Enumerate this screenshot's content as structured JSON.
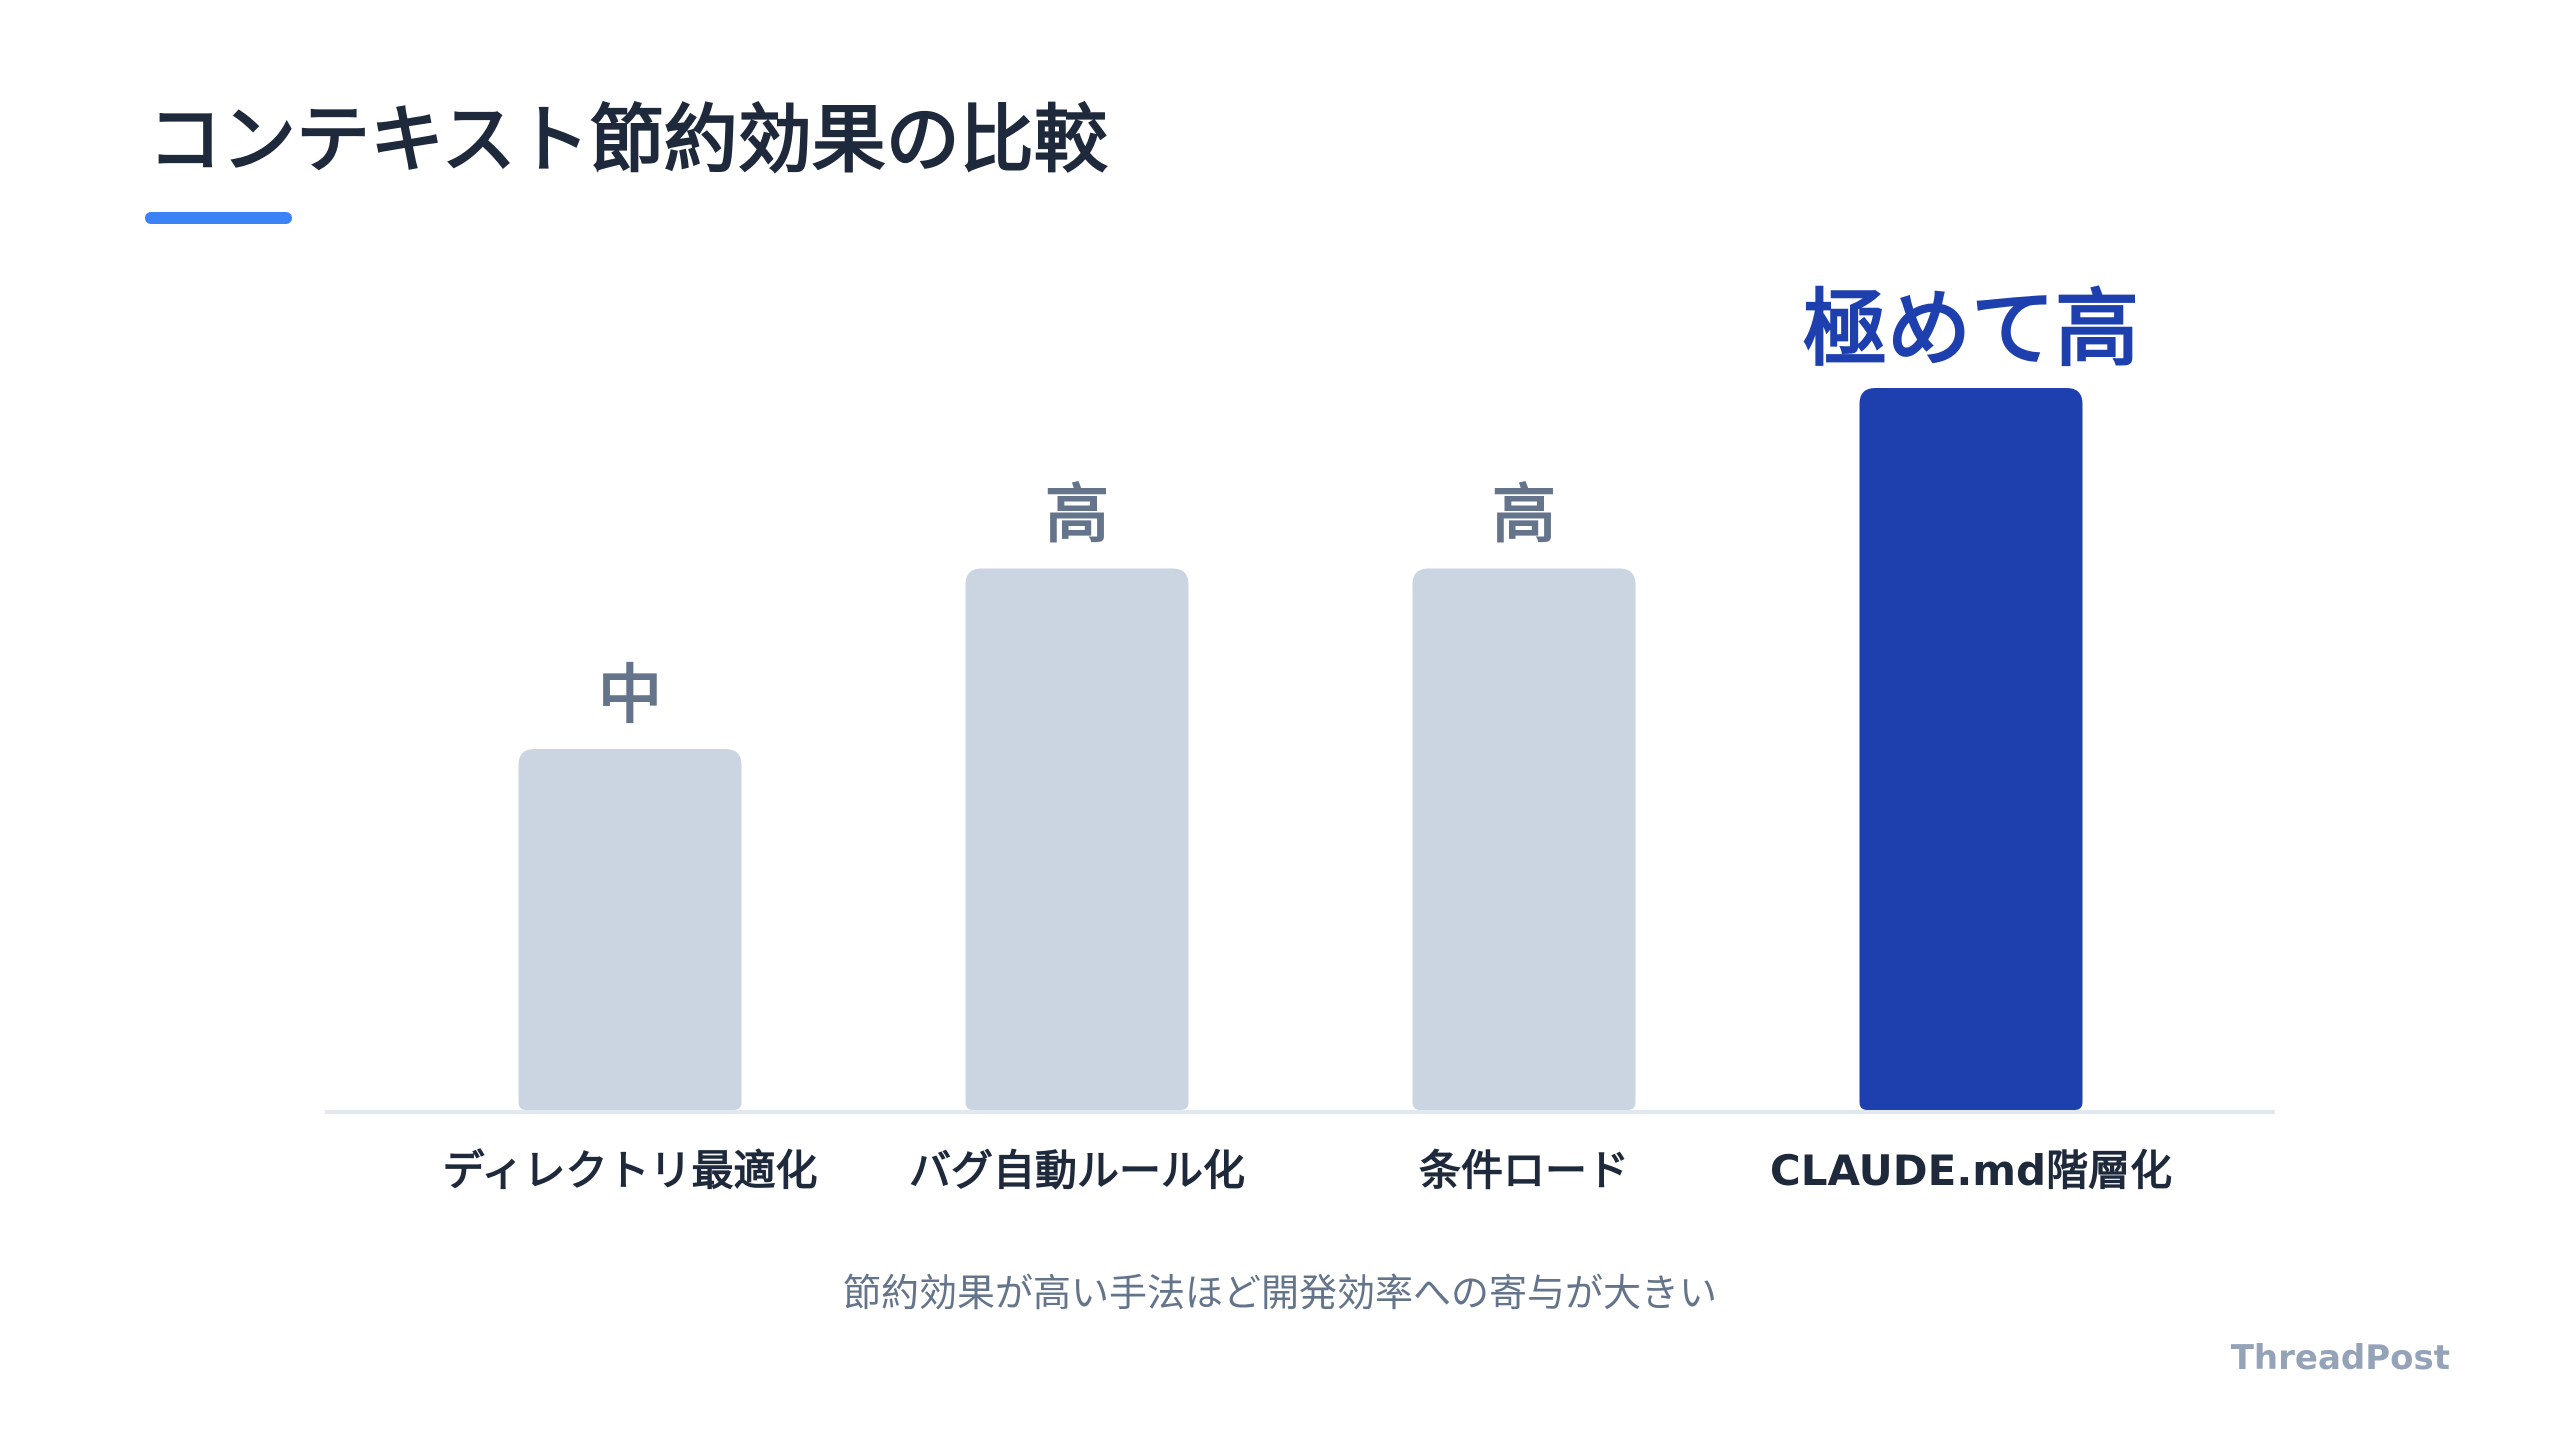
{
  "title": "コンテキスト節約効果の比較",
  "colors": {
    "accent": "#3b82f6",
    "bar_default": "#cbd5e1",
    "bar_highlight": "#1e40af",
    "label_default": "#64748b",
    "label_highlight": "#1e40af",
    "baseline": "#e2e8f0",
    "category_text": "#1e293b"
  },
  "chart_data": {
    "type": "bar",
    "title": "",
    "xlabel": "",
    "ylabel": "",
    "categories": [
      "ディレクトリ最適化",
      "バグ自動ルール化",
      "条件ロード",
      "CLAUDE.md階層化"
    ],
    "values": [
      2,
      3,
      3,
      4
    ],
    "value_labels": [
      "中",
      "高",
      "高",
      "極めて高"
    ],
    "highlight_index": 3,
    "ylim": [
      0,
      4
    ],
    "grid": false,
    "legend": "none"
  },
  "note": "節約効果が高い手法ほど開発効率への寄与が大きい",
  "brand": "ThreadPost"
}
